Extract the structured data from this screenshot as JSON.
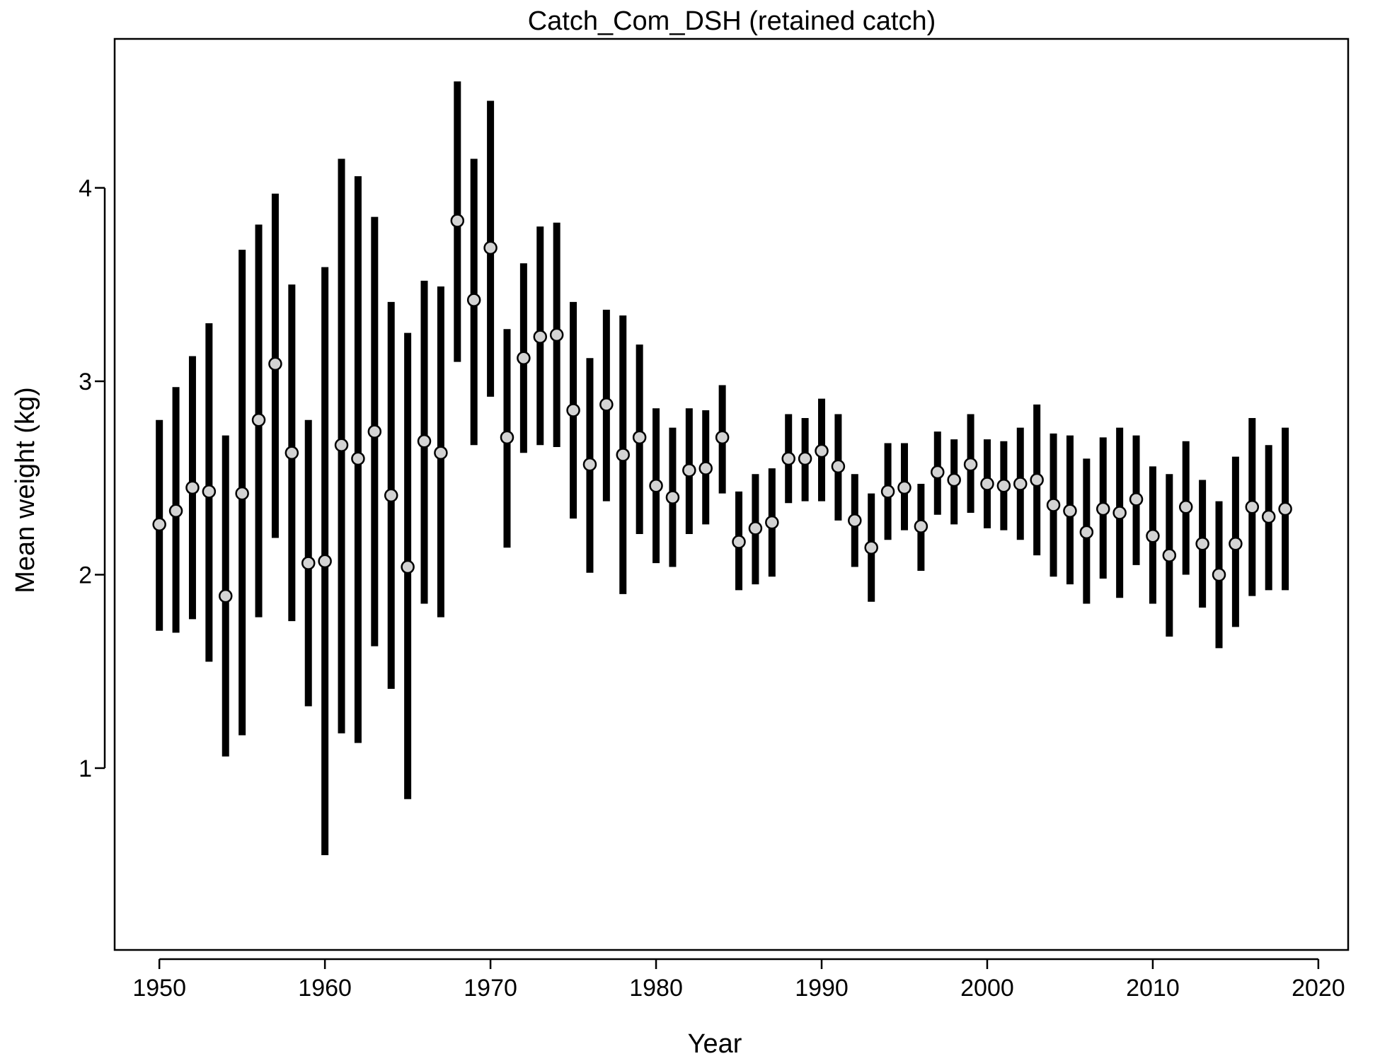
{
  "chart_data": {
    "type": "scatter",
    "title": "Catch_Com_DSH (retained catch)",
    "xlabel": "Year",
    "ylabel": "Mean weight (kg)",
    "xlim": [
      1947.3,
      2021.8
    ],
    "ylim": [
      0.06,
      4.77
    ],
    "xticks": [
      1950,
      1960,
      1970,
      1980,
      1990,
      2000,
      2010,
      2020
    ],
    "yticks": [
      1,
      2,
      3,
      4
    ],
    "grid": false,
    "legend": "none",
    "colors": {
      "bar": "#000000",
      "point_fill": "#d3d3d3",
      "point_stroke": "#000000"
    },
    "x": [
      1950,
      1951,
      1952,
      1953,
      1954,
      1955,
      1956,
      1957,
      1958,
      1959,
      1960,
      1961,
      1962,
      1963,
      1964,
      1965,
      1966,
      1967,
      1968,
      1969,
      1970,
      1971,
      1972,
      1973,
      1974,
      1975,
      1976,
      1977,
      1978,
      1979,
      1980,
      1981,
      1982,
      1983,
      1984,
      1985,
      1986,
      1987,
      1988,
      1989,
      1990,
      1991,
      1992,
      1993,
      1994,
      1995,
      1996,
      1997,
      1998,
      1999,
      2000,
      2001,
      2002,
      2003,
      2004,
      2005,
      2006,
      2007,
      2008,
      2009,
      2010,
      2011,
      2012,
      2013,
      2014,
      2015,
      2016,
      2017,
      2018
    ],
    "y": [
      2.26,
      2.33,
      2.45,
      2.43,
      1.89,
      2.42,
      2.8,
      3.09,
      2.63,
      2.06,
      2.07,
      2.67,
      2.6,
      2.74,
      2.41,
      2.04,
      2.69,
      2.63,
      3.83,
      3.42,
      3.69,
      2.71,
      3.12,
      3.23,
      3.24,
      2.85,
      2.57,
      2.88,
      2.62,
      2.71,
      2.46,
      2.4,
      2.54,
      2.55,
      2.71,
      2.17,
      2.24,
      2.27,
      2.6,
      2.6,
      2.64,
      2.56,
      2.28,
      2.14,
      2.43,
      2.45,
      2.25,
      2.53,
      2.49,
      2.57,
      2.47,
      2.46,
      2.47,
      2.49,
      2.36,
      2.33,
      2.22,
      2.34,
      2.32,
      2.39,
      2.2,
      2.1,
      2.35,
      2.16,
      2.0,
      2.16,
      2.35,
      2.3,
      2.34
    ],
    "lower": [
      1.71,
      1.7,
      1.77,
      1.55,
      1.06,
      1.17,
      1.78,
      2.19,
      1.76,
      1.32,
      0.55,
      1.18,
      1.13,
      1.63,
      1.41,
      0.84,
      1.85,
      1.78,
      3.1,
      2.67,
      2.92,
      2.14,
      2.63,
      2.67,
      2.66,
      2.29,
      2.01,
      2.38,
      1.9,
      2.21,
      2.06,
      2.04,
      2.21,
      2.26,
      2.42,
      1.92,
      1.95,
      1.99,
      2.37,
      2.38,
      2.38,
      2.28,
      2.04,
      1.86,
      2.18,
      2.23,
      2.02,
      2.31,
      2.26,
      2.32,
      2.24,
      2.23,
      2.18,
      2.1,
      1.99,
      1.95,
      1.85,
      1.98,
      1.88,
      2.05,
      1.85,
      1.68,
      2.0,
      1.83,
      1.62,
      1.73,
      1.89,
      1.92,
      1.92
    ],
    "upper": [
      2.8,
      2.97,
      3.13,
      3.3,
      2.72,
      3.68,
      3.81,
      3.97,
      3.5,
      2.8,
      3.59,
      4.15,
      4.06,
      3.85,
      3.41,
      3.25,
      3.52,
      3.49,
      4.55,
      4.15,
      4.45,
      3.27,
      3.61,
      3.8,
      3.82,
      3.41,
      3.12,
      3.37,
      3.34,
      3.19,
      2.86,
      2.76,
      2.86,
      2.85,
      2.98,
      2.43,
      2.52,
      2.55,
      2.83,
      2.81,
      2.91,
      2.83,
      2.52,
      2.42,
      2.68,
      2.68,
      2.47,
      2.74,
      2.7,
      2.83,
      2.7,
      2.69,
      2.76,
      2.88,
      2.73,
      2.72,
      2.6,
      2.71,
      2.76,
      2.72,
      2.56,
      2.52,
      2.69,
      2.49,
      2.38,
      2.61,
      2.81,
      2.67,
      2.76
    ]
  }
}
